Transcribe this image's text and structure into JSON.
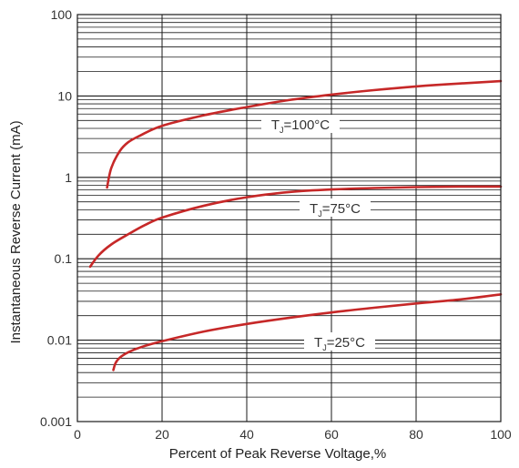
{
  "chart_data": {
    "type": "line",
    "title": "",
    "xlabel": "Percent of Peak Reverse Voltage,%",
    "ylabel": "Instantaneous Reverse Current (mA)",
    "x_scale": "linear",
    "y_scale": "log",
    "xlim": [
      0,
      100
    ],
    "ylim": [
      0.001,
      100
    ],
    "x_ticks": [
      "0",
      "20",
      "40",
      "60",
      "80",
      "100"
    ],
    "y_ticks": [
      "0.001",
      "0.01",
      "0.1",
      "1",
      "10",
      "100"
    ],
    "grid": true,
    "line_color": "#c62828",
    "series": [
      {
        "label_main": "T",
        "label_sub": "J",
        "label_rest": "=100°C",
        "x": [
          7,
          8,
          10,
          12,
          15,
          20,
          30,
          40,
          50,
          60,
          70,
          80,
          90,
          100
        ],
        "y": [
          0.75,
          1.3,
          2.1,
          2.7,
          3.3,
          4.3,
          5.8,
          7.3,
          8.9,
          10.4,
          11.8,
          13.1,
          14.2,
          15.2
        ]
      },
      {
        "label_main": "T",
        "label_sub": "J",
        "label_rest": "=75°C",
        "x": [
          3,
          5,
          8,
          12,
          16,
          20,
          30,
          40,
          50,
          60,
          70,
          80,
          90,
          100
        ],
        "y": [
          0.08,
          0.11,
          0.15,
          0.2,
          0.26,
          0.32,
          0.45,
          0.57,
          0.66,
          0.71,
          0.74,
          0.76,
          0.77,
          0.77
        ]
      },
      {
        "label_main": "T",
        "label_sub": "J",
        "label_rest": "=25°C",
        "x": [
          8.5,
          9,
          10,
          12,
          15,
          20,
          30,
          40,
          50,
          60,
          70,
          80,
          90,
          100
        ],
        "y": [
          0.0043,
          0.0052,
          0.0061,
          0.0071,
          0.0082,
          0.0097,
          0.0128,
          0.0158,
          0.0188,
          0.0219,
          0.025,
          0.0282,
          0.0315,
          0.0365
        ]
      }
    ]
  }
}
